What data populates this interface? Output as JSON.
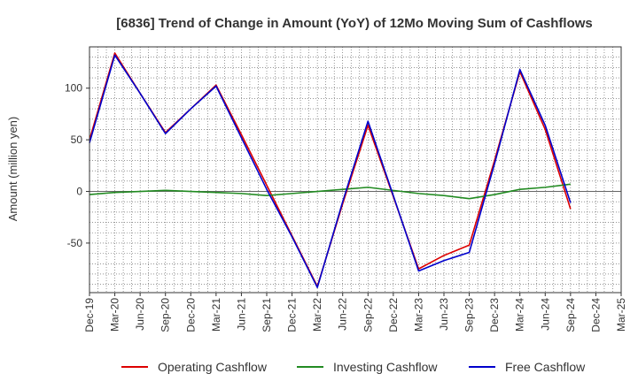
{
  "chart_data": {
    "type": "line",
    "title": "[6836]  Trend of Change in Amount (YoY) of 12Mo Moving Sum of Cashflows",
    "xlabel": "",
    "ylabel": "Amount (million yen)",
    "ylim": [
      -98,
      140
    ],
    "yticks": [
      100,
      50,
      0,
      -50
    ],
    "grid": true,
    "legend_position": "bottom",
    "categories": [
      "Dec-19",
      "Mar-20",
      "Jun-20",
      "Sep-20",
      "Dec-20",
      "Mar-21",
      "Jun-21",
      "Sep-21",
      "Dec-21",
      "Mar-22",
      "Jun-22",
      "Sep-22",
      "Dec-22",
      "Mar-23",
      "Jun-23",
      "Sep-23",
      "Dec-23",
      "Mar-24",
      "Jun-24",
      "Sep-24",
      "Dec-24",
      "Mar-25"
    ],
    "series": [
      {
        "name": "Operating Cashflow",
        "color": "#dd0000",
        "values": [
          50,
          134,
          95,
          57,
          80,
          103,
          55,
          6,
          -43,
          -92,
          -12,
          64,
          -5,
          -75,
          -62,
          -52,
          30,
          116,
          60,
          -17,
          null,
          null
        ]
      },
      {
        "name": "Investing Cashflow",
        "color": "#228b22",
        "values": [
          -3,
          -1,
          0,
          1,
          0,
          -1,
          -2,
          -4,
          -2,
          0,
          2,
          4,
          1,
          -2,
          -4,
          -7,
          -3,
          2,
          4,
          7,
          null,
          null
        ]
      },
      {
        "name": "Free Cashflow",
        "color": "#0000cc",
        "values": [
          47,
          132,
          95,
          56,
          80,
          102,
          52,
          2,
          -44,
          -93,
          -10,
          68,
          -4,
          -77,
          -67,
          -59,
          27,
          118,
          64,
          -11,
          null,
          null
        ]
      }
    ]
  }
}
